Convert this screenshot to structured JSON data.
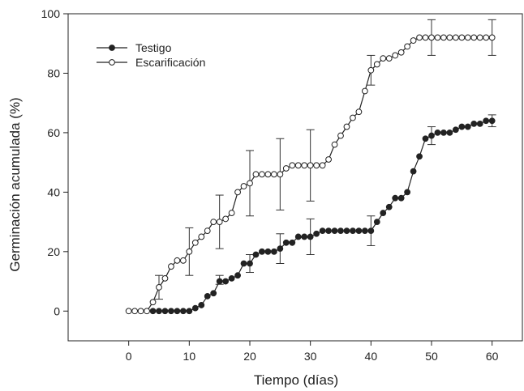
{
  "chart_data": {
    "type": "line",
    "title": "",
    "xlabel": "Tiempo (días)",
    "ylabel": "Germinación acumulada (%)",
    "xlim": [
      -10,
      65
    ],
    "ylim": [
      -10,
      100
    ],
    "xticks": [
      0,
      10,
      20,
      30,
      40,
      50,
      60
    ],
    "yticks": [
      0,
      20,
      40,
      60,
      80,
      100
    ],
    "grid": false,
    "legend_position": "top-left",
    "series": [
      {
        "name": "Testigo",
        "marker": "filled-circle",
        "color": "#222222",
        "x": [
          4,
          5,
          6,
          7,
          8,
          9,
          10,
          11,
          12,
          13,
          14,
          15,
          16,
          17,
          18,
          19,
          20,
          21,
          22,
          23,
          24,
          25,
          26,
          27,
          28,
          29,
          30,
          31,
          32,
          33,
          34,
          35,
          36,
          37,
          38,
          39,
          40,
          41,
          42,
          43,
          44,
          45,
          46,
          47,
          48,
          49,
          50,
          51,
          52,
          53,
          54,
          55,
          56,
          57,
          58,
          59,
          60
        ],
        "y": [
          0,
          0,
          0,
          0,
          0,
          0,
          0,
          1,
          2,
          5,
          6,
          10,
          10,
          11,
          12,
          16,
          16,
          19,
          20,
          20,
          20,
          21,
          23,
          23,
          25,
          25,
          25,
          26,
          27,
          27,
          27,
          27,
          27,
          27,
          27,
          27,
          27,
          30,
          33,
          35,
          38,
          38,
          40,
          47,
          52,
          58,
          59,
          60,
          60,
          60,
          61,
          62,
          62,
          63,
          63,
          64,
          64
        ],
        "error_bars": [
          {
            "x": 15,
            "low": 9,
            "high": 12
          },
          {
            "x": 20,
            "low": 13,
            "high": 19
          },
          {
            "x": 25,
            "low": 16,
            "high": 26
          },
          {
            "x": 30,
            "low": 19,
            "high": 31
          },
          {
            "x": 40,
            "low": 22,
            "high": 32
          },
          {
            "x": 50,
            "low": 56,
            "high": 62
          },
          {
            "x": 60,
            "low": 62,
            "high": 66
          }
        ]
      },
      {
        "name": "Escarificación",
        "marker": "open-circle",
        "color": "#222222",
        "x": [
          0,
          1,
          2,
          3,
          4,
          5,
          6,
          7,
          8,
          9,
          10,
          11,
          12,
          13,
          14,
          15,
          16,
          17,
          18,
          19,
          20,
          21,
          22,
          23,
          24,
          25,
          26,
          27,
          28,
          29,
          30,
          31,
          32,
          33,
          34,
          35,
          36,
          37,
          38,
          39,
          40,
          41,
          42,
          43,
          44,
          45,
          46,
          47,
          48,
          49,
          50,
          51,
          52,
          53,
          54,
          55,
          56,
          57,
          58,
          59,
          60
        ],
        "y": [
          0,
          0,
          0,
          0,
          3,
          8,
          11,
          15,
          17,
          17,
          20,
          23,
          25,
          27,
          30,
          30,
          31,
          33,
          40,
          42,
          43,
          46,
          46,
          46,
          46,
          46,
          48,
          49,
          49,
          49,
          49,
          49,
          49,
          51,
          56,
          59,
          62,
          65,
          67,
          74,
          81,
          83,
          85,
          85,
          86,
          87,
          89,
          91,
          92,
          92,
          92,
          92,
          92,
          92,
          92,
          92,
          92,
          92,
          92,
          92,
          92
        ],
        "error_bars": [
          {
            "x": 5,
            "low": 4,
            "high": 12
          },
          {
            "x": 10,
            "low": 12,
            "high": 28
          },
          {
            "x": 15,
            "low": 21,
            "high": 39
          },
          {
            "x": 20,
            "low": 32,
            "high": 54
          },
          {
            "x": 25,
            "low": 34,
            "high": 58
          },
          {
            "x": 30,
            "low": 37,
            "high": 61
          },
          {
            "x": 40,
            "low": 76,
            "high": 86
          },
          {
            "x": 50,
            "low": 86,
            "high": 98
          },
          {
            "x": 60,
            "low": 86,
            "high": 98
          }
        ]
      }
    ]
  }
}
